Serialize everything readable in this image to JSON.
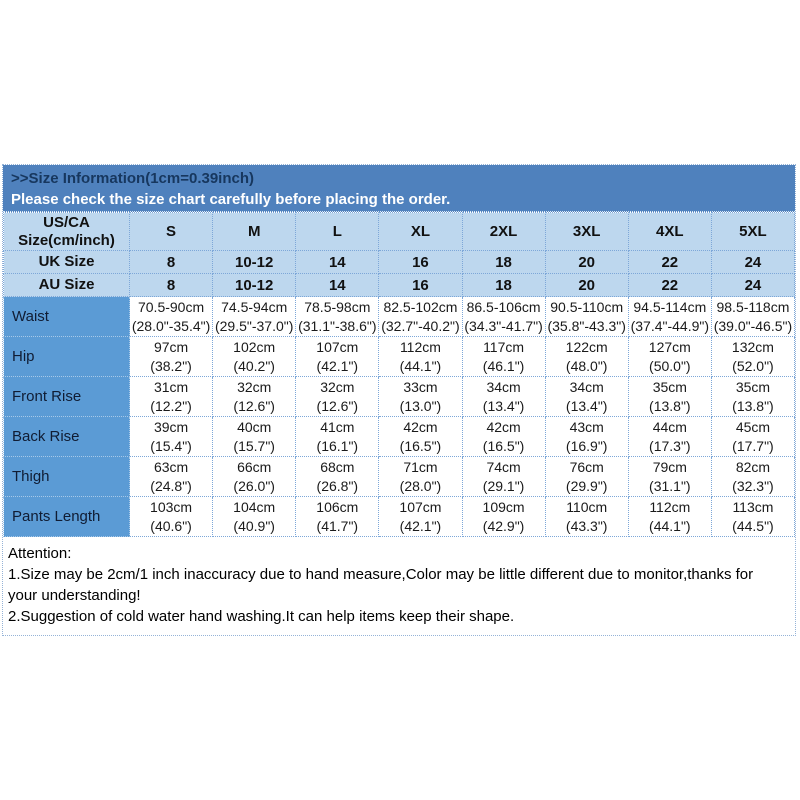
{
  "banner": {
    "title": ">>Size Information(1cm=0.39inch)",
    "subtitle": "Please check the size chart carefully before placing the order."
  },
  "size_chart": {
    "header": {
      "label": "US/CA Size(cm/inch)",
      "sizes": [
        "S",
        "M",
        "L",
        "XL",
        "2XL",
        "3XL",
        "4XL",
        "5XL"
      ]
    },
    "uk_row": {
      "label": "UK Size",
      "values": [
        "8",
        "10-12",
        "14",
        "16",
        "18",
        "20",
        "22",
        "24"
      ]
    },
    "au_row": {
      "label": "AU Size",
      "values": [
        "8",
        "10-12",
        "14",
        "16",
        "18",
        "20",
        "22",
        "24"
      ]
    },
    "measurement_rows": [
      {
        "label": "Waist",
        "cm": [
          "70.5-90cm",
          "74.5-94cm",
          "78.5-98cm",
          "82.5-102cm",
          "86.5-106cm",
          "90.5-110cm",
          "94.5-114cm",
          "98.5-118cm"
        ],
        "inch": [
          "(28.0\"-35.4\")",
          "(29.5\"-37.0\")",
          "(31.1\"-38.6\")",
          "(32.7\"-40.2\")",
          "(34.3\"-41.7\")",
          "(35.8\"-43.3\")",
          "(37.4\"-44.9\")",
          "(39.0\"-46.5\")"
        ]
      },
      {
        "label": "Hip",
        "cm": [
          "97cm",
          "102cm",
          "107cm",
          "112cm",
          "117cm",
          "122cm",
          "127cm",
          "132cm"
        ],
        "inch": [
          "(38.2\")",
          "(40.2\")",
          "(42.1\")",
          "(44.1\")",
          "(46.1\")",
          "(48.0\")",
          "(50.0\")",
          "(52.0\")"
        ]
      },
      {
        "label": "Front Rise",
        "cm": [
          "31cm",
          "32cm",
          "32cm",
          "33cm",
          "34cm",
          "34cm",
          "35cm",
          "35cm"
        ],
        "inch": [
          "(12.2\")",
          "(12.6\")",
          "(12.6\")",
          "(13.0\")",
          "(13.4\")",
          "(13.4\")",
          "(13.8\")",
          "(13.8\")"
        ]
      },
      {
        "label": "Back Rise",
        "cm": [
          "39cm",
          "40cm",
          "41cm",
          "42cm",
          "42cm",
          "43cm",
          "44cm",
          "45cm"
        ],
        "inch": [
          "(15.4\")",
          "(15.7\")",
          "(16.1\")",
          "(16.5\")",
          "(16.5\")",
          "(16.9\")",
          "(17.3\")",
          "(17.7\")"
        ]
      },
      {
        "label": "Thigh",
        "cm": [
          "63cm",
          "66cm",
          "68cm",
          "71cm",
          "74cm",
          "76cm",
          "79cm",
          "82cm"
        ],
        "inch": [
          "(24.8\")",
          "(26.0\")",
          "(26.8\")",
          "(28.0\")",
          "(29.1\")",
          "(29.9\")",
          "(31.1\")",
          "(32.3\")"
        ]
      },
      {
        "label": "Pants Length",
        "cm": [
          "103cm",
          "104cm",
          "106cm",
          "107cm",
          "109cm",
          "110cm",
          "112cm",
          "113cm"
        ],
        "inch": [
          "(40.6\")",
          "(40.9\")",
          "(41.7\")",
          "(42.1\")",
          "(42.9\")",
          "(43.3\")",
          "(44.1\")",
          "(44.5\")"
        ]
      }
    ]
  },
  "attention": {
    "title": "Attention:",
    "lines": [
      "1.Size may be 2cm/1 inch inaccuracy due to hand measure,Color may be little different due to monitor,thanks for your understanding!",
      "2.Suggestion of cold water hand washing.It can help items keep their shape."
    ]
  },
  "colors": {
    "banner_bg": "#4f81bd",
    "banner_title_text": "#17375e",
    "banner_subtitle_text": "#ffffff",
    "header_row_bg": "#bdd7ee",
    "label_column_bg": "#5b9bd5",
    "grid_border": "#7da7d8"
  }
}
